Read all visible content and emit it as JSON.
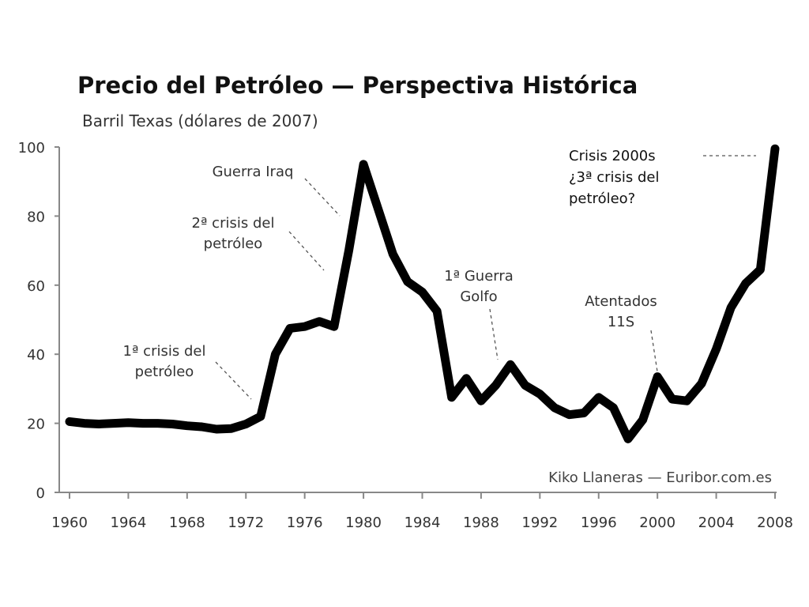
{
  "chart_data": {
    "type": "line",
    "title": "Precio del Petróleo — Perspectiva Histórica",
    "subtitle": "Barril Texas (dólares de 2007)",
    "xlabel": "",
    "ylabel": "",
    "xlim": [
      1960,
      2008
    ],
    "ylim": [
      0,
      100
    ],
    "x_ticks": [
      1960,
      1964,
      1968,
      1972,
      1976,
      1980,
      1984,
      1988,
      1992,
      1996,
      2000,
      2004,
      2008
    ],
    "y_ticks": [
      0,
      20,
      40,
      60,
      80,
      100
    ],
    "grid": false,
    "legend": "none",
    "series": [
      {
        "color": "#000000",
        "x": [
          1960,
          1961,
          1962,
          1963,
          1964,
          1965,
          1966,
          1967,
          1968,
          1969,
          1970,
          1971,
          1972,
          1973,
          1974,
          1975,
          1976,
          1977,
          1978,
          1979,
          1980,
          1981,
          1982,
          1983,
          1984,
          1985,
          1986,
          1987,
          1988,
          1989,
          1990,
          1991,
          1992,
          1993,
          1994,
          1995,
          1996,
          1997,
          1998,
          1999,
          2000,
          2001,
          2002,
          2003,
          2004,
          2005,
          2006,
          2007,
          2008
        ],
        "values": [
          20.5,
          20,
          19.8,
          20,
          20.2,
          20,
          20,
          19.8,
          19.3,
          19,
          18.3,
          18.5,
          19.8,
          22,
          40,
          47.5,
          48,
          49.5,
          48,
          70,
          95,
          82,
          69,
          61,
          58,
          52.5,
          27.5,
          33,
          26.5,
          31,
          37,
          31,
          28.5,
          24.5,
          22.5,
          23,
          27.5,
          24.5,
          15.5,
          21,
          33.5,
          27,
          26.5,
          31.5,
          41.5,
          53.5,
          60.5,
          64.5,
          99.5
        ]
      }
    ],
    "annotations": [
      {
        "lines": [
          "1ª crisis del",
          "petróleo"
        ]
      },
      {
        "lines": [
          "2ª crisis del",
          "petróleo"
        ]
      },
      {
        "lines": [
          "Guerra Iraq"
        ]
      },
      {
        "lines": [
          "1ª Guerra",
          "Golfo"
        ]
      },
      {
        "lines": [
          "Atentados",
          "11S"
        ]
      },
      {
        "lines": [
          "Crisis 2000s",
          "¿3ª crisis del",
          "petróleo?"
        ]
      }
    ],
    "credit": "Kiko Llaneras — Euribor.com.es"
  }
}
